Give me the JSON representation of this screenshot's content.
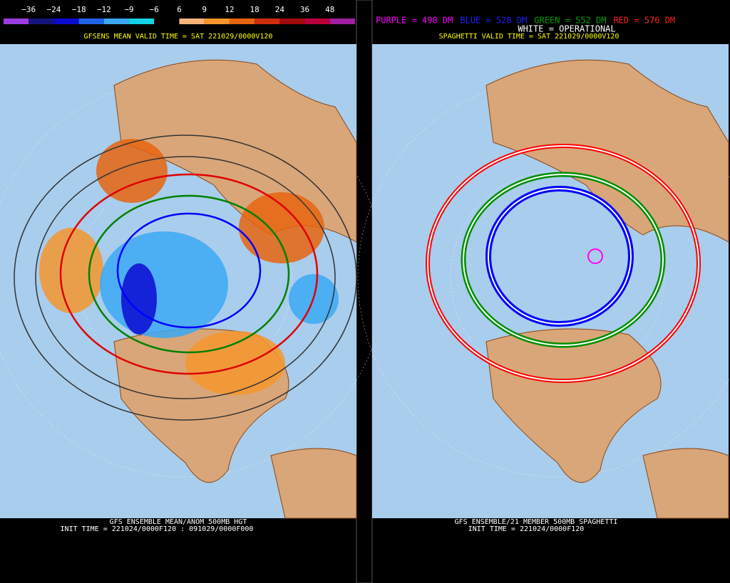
{
  "left_panel": {
    "colorbar": {
      "labels": [
        "−36",
        "−24",
        "−18",
        "−12",
        "−9",
        "−6",
        "6",
        "9",
        "12",
        "18",
        "24",
        "36",
        "48"
      ],
      "colors": [
        "#9a3ce0",
        "#14147a",
        "#0a0ad2",
        "#1e64e6",
        "#3ca8f5",
        "#14d2e6",
        "#000000",
        "#f8b478",
        "#f5962d",
        "#e6640f",
        "#cd2d0f",
        "#a00a0a",
        "#b9003c",
        "#a01ea0"
      ]
    },
    "valid_time": "GFSENS MEAN VALID TIME = SAT 221029/0000V120",
    "footer_title": "GFS ENSEMBLE MEAN/ANOM 500MB HGT",
    "footer_init": "INIT TIME = 221024/0000F120 : 091029/0000F000"
  },
  "right_panel": {
    "legend": [
      {
        "text": "PURPLE = 498 DM",
        "color": "#ff00ff"
      },
      {
        "text": "BLUE = 528 DM",
        "color": "#2020ff"
      },
      {
        "text": "GREEN = 552 DM",
        "color": "#00a000"
      },
      {
        "text": "RED = 576 DM",
        "color": "#ff2020"
      }
    ],
    "operational": "WHITE = OPERATIONAL",
    "valid_time": "SPAGHETTI VALID TIME = SAT 221029/0000V120",
    "footer_title": "GFS ENSEMBLE/21 MEMBER 500MB SPAGHETTI",
    "footer_init": "INIT TIME = 221024/0000F120"
  }
}
